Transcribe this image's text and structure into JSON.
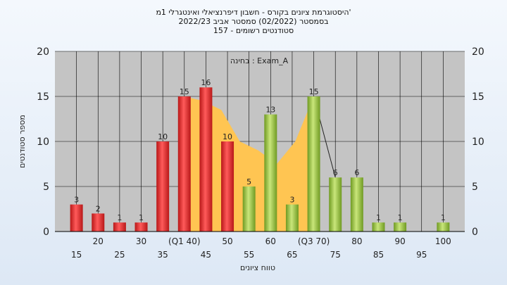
{
  "chart_data": {
    "type": "bar",
    "title_lines": [
      "היסטוגרמת ציונים בקורס - חשבון דיפרנציאלי ואינטגרלי 1מ'",
      "בסמסטר  (02/2022)  סמסטר אביב 2022/23",
      "157 - סטודנטים רשומים"
    ],
    "annotation": "בחינה : Exam_A",
    "xlabel": "טווח ציונים",
    "ylabel": "מספר סטודנטים",
    "ylim": [
      0,
      20
    ],
    "yticks": [
      0,
      5,
      10,
      15,
      20
    ],
    "grid": true,
    "categories": [
      "15",
      "20",
      "25",
      "30",
      "35",
      "(Q1 40)",
      "45",
      "50",
      "55",
      "60",
      "65",
      "(Q3 70)",
      "75",
      "80",
      "85",
      "90",
      "95",
      "100"
    ],
    "values": [
      3,
      2,
      1,
      1,
      10,
      15,
      16,
      10,
      5,
      13,
      3,
      15,
      6,
      6,
      1,
      1,
      0,
      1
    ],
    "bar_colors": [
      "red",
      "red",
      "red",
      "red",
      "red",
      "red",
      "red",
      "red",
      "green",
      "green",
      "green",
      "green",
      "green",
      "green",
      "green",
      "green",
      "green",
      "green"
    ],
    "quartile_band": {
      "from_category": "(Q1 40)",
      "to_category": "(Q3 70)",
      "values": [
        15,
        14.5,
        13.5,
        10,
        9,
        7.5,
        10,
        15
      ],
      "color": "#ffc552"
    },
    "colors": {
      "red": "#e83030",
      "green": "#9dc44c",
      "plot_bg": "#c4c4c4",
      "band": "#ffc552"
    }
  }
}
